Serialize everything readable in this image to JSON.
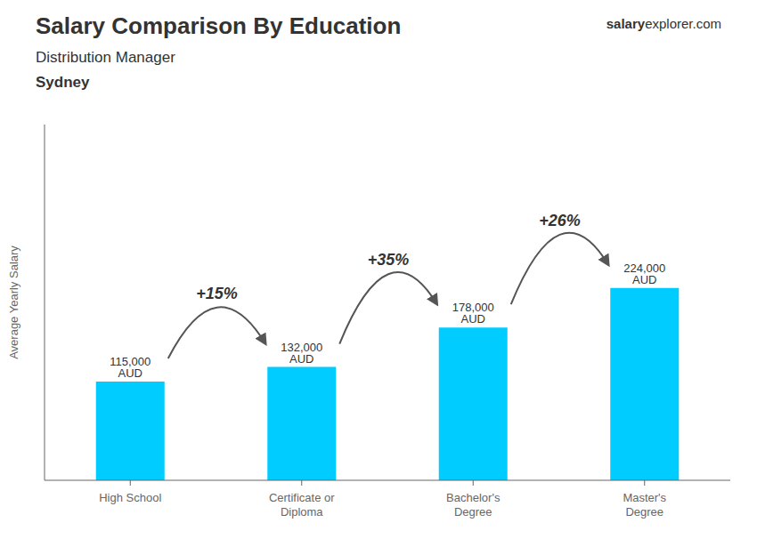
{
  "chart_data": {
    "type": "bar",
    "title": "Salary Comparison By Education",
    "subtitle": "Distribution Manager",
    "y_label": "Average Yearly Salary",
    "categories": [
      "High School",
      "Certificate or\nDiploma",
      "Bachelor's\nDegree",
      "Master's\nDegree"
    ],
    "values": [
      115000,
      132000,
      178000,
      224000
    ],
    "value_labels": [
      "115,000 AUD",
      "132,000 AUD",
      "178,000 AUD",
      "224,000 AUD"
    ],
    "data_labels": true,
    "color": "#00ccff",
    "ylim": [
      0,
      414400
    ],
    "tick_labels": "x",
    "grid": false,
    "annotations": [
      {
        "text": "Sydney"
      },
      {
        "text": "salary"
      },
      {
        "text": "explorer.com"
      },
      {
        "text": "+15%",
        "from": "High School",
        "to": "Certificate or\nDiploma"
      },
      {
        "text": "+35%",
        "from": "Certificate or\nDiploma",
        "to": "Bachelor's\nDegree"
      },
      {
        "text": "+26%",
        "from": "Bachelor's\nDegree",
        "to": "Master's\nDegree"
      }
    ]
  }
}
